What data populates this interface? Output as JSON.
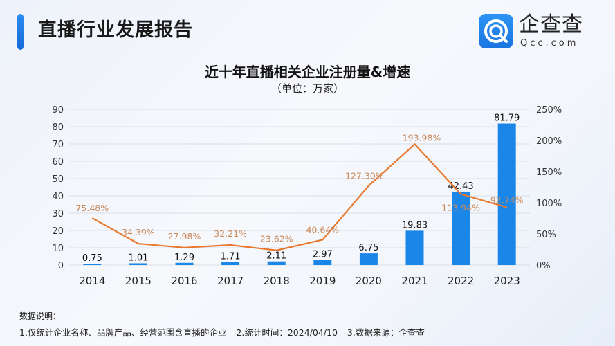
{
  "header": {
    "title": "直播行业发展报告"
  },
  "logo": {
    "name": "企查查",
    "domain": "Qcc.com"
  },
  "chart_data": {
    "type": "bar+line",
    "title": "近十年直播相关企业注册量&增速",
    "subtitle": "（单位：万家）",
    "categories": [
      "2014",
      "2015",
      "2016",
      "2017",
      "2018",
      "2019",
      "2020",
      "2021",
      "2022",
      "2023"
    ],
    "series": [
      {
        "type": "bar",
        "axis": "left",
        "color": "#1a87e8",
        "values": [
          0.75,
          1.01,
          1.29,
          1.71,
          2.11,
          2.97,
          6.75,
          19.83,
          42.43,
          81.79
        ],
        "labels": [
          "0.75",
          "1.01",
          "1.29",
          "1.71",
          "2.11",
          "2.97",
          "6.75",
          "19.83",
          "42.43",
          "81.79"
        ]
      },
      {
        "type": "line",
        "axis": "right",
        "color": "#e8782e",
        "values": [
          75.48,
          34.39,
          27.98,
          32.21,
          23.62,
          40.64,
          127.3,
          193.98,
          113.94,
          92.74
        ],
        "labels": [
          "75.48%",
          "34.39%",
          "27.98%",
          "32.21%",
          "23.62%",
          "40.64%",
          "127.30%",
          "193.98%",
          "113.94%",
          "92.74%"
        ]
      }
    ],
    "y_left": {
      "range": [
        0,
        90
      ],
      "ticks": [
        "0",
        "10",
        "20",
        "30",
        "40",
        "50",
        "60",
        "70",
        "80",
        "90"
      ]
    },
    "y_right": {
      "range": [
        0,
        250
      ],
      "ticks": [
        "0%",
        "50%",
        "100%",
        "150%",
        "200%",
        "250%"
      ]
    },
    "grid": true,
    "legend": "none"
  },
  "notes": {
    "title": "数据说明：",
    "items": [
      "1.仅统计企业名称、品牌产品、经营范围含直播的企业",
      "2.统计时间：2024/04/10",
      "3.数据来源：企查查"
    ]
  }
}
